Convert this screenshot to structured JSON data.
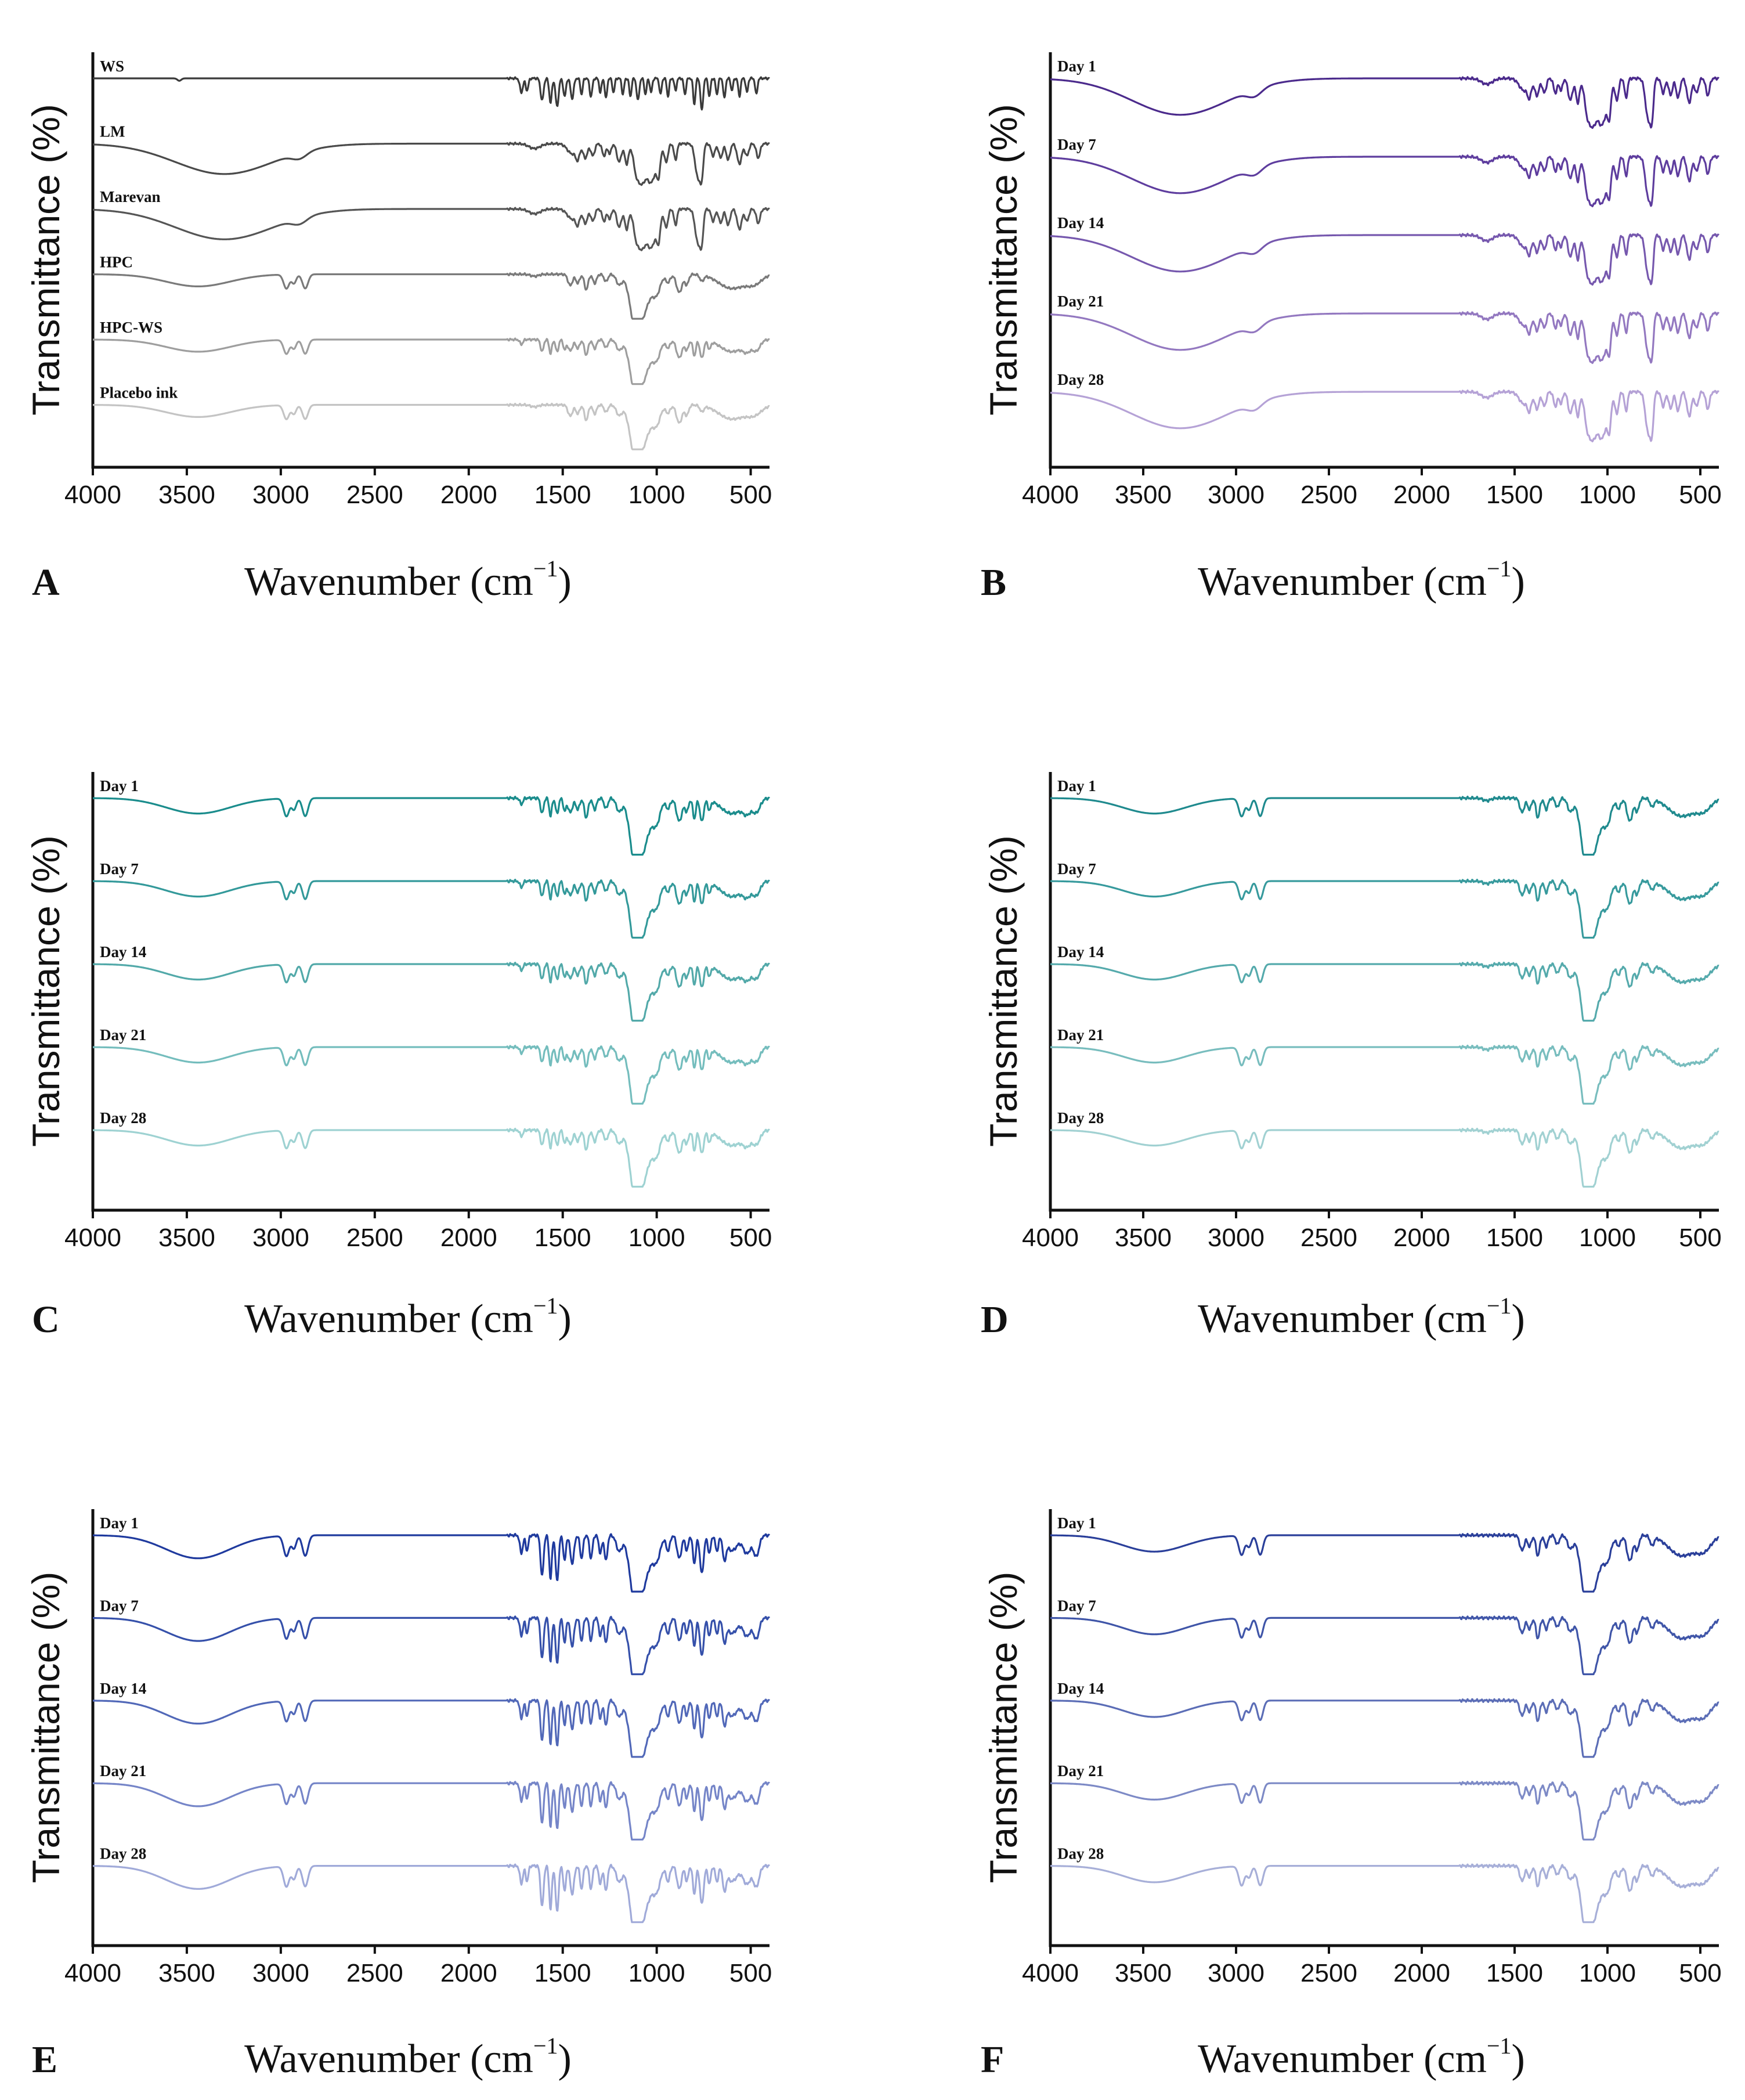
{
  "chart_data": [
    {
      "type": "line",
      "panel_label": "A",
      "ylabel": "Transmittance (%)",
      "xlabel": "Wavenumber (cm",
      "xlabel_superscript": "−1",
      "xlabel_suffix": ")",
      "xlim": [
        4000,
        400
      ],
      "xticks": [
        4000,
        3500,
        3000,
        2500,
        2000,
        1500,
        1000,
        500
      ],
      "series": [
        {
          "name": "WS",
          "color": "#3a3a3a",
          "profile": "WS"
        },
        {
          "name": "LM",
          "color": "#4a4a4a",
          "profile": "LM"
        },
        {
          "name": "Marevan",
          "color": "#555555",
          "profile": "LM"
        },
        {
          "name": "HPC",
          "color": "#7a7a7a",
          "profile": "HPC"
        },
        {
          "name": "HPC-WS",
          "color": "#9e9e9e",
          "profile": "HPCWS"
        },
        {
          "name": "Placebo ink",
          "color": "#c4c4c4",
          "profile": "HPC"
        }
      ]
    },
    {
      "type": "line",
      "panel_label": "B",
      "ylabel": "Transmittance (%)",
      "xlabel": "Wavenumber (cm",
      "xlabel_superscript": "−1",
      "xlabel_suffix": ")",
      "xlim": [
        4000,
        400
      ],
      "xticks": [
        4000,
        3500,
        3000,
        2500,
        2000,
        1500,
        1000,
        500
      ],
      "series": [
        {
          "name": "Day 1",
          "color": "#4b2a8c",
          "profile": "LM"
        },
        {
          "name": "Day 7",
          "color": "#5e3d9e",
          "profile": "LM"
        },
        {
          "name": "Day 14",
          "color": "#7658ae",
          "profile": "LM"
        },
        {
          "name": "Day 21",
          "color": "#9378c0",
          "profile": "LM"
        },
        {
          "name": "Day 28",
          "color": "#b5a2d6",
          "profile": "LM"
        }
      ]
    },
    {
      "type": "line",
      "panel_label": "C",
      "ylabel": "Transmittance (%)",
      "xlabel": "Wavenumber (cm",
      "xlabel_superscript": "−1",
      "xlabel_suffix": ")",
      "xlim": [
        4000,
        400
      ],
      "xticks": [
        4000,
        3500,
        3000,
        2500,
        2000,
        1500,
        1000,
        500
      ],
      "series": [
        {
          "name": "Day 1",
          "color": "#1a8c8c",
          "profile": "HPCWS"
        },
        {
          "name": "Day 7",
          "color": "#33999a",
          "profile": "HPCWS"
        },
        {
          "name": "Day 14",
          "color": "#52a9a9",
          "profile": "HPCWS"
        },
        {
          "name": "Day 21",
          "color": "#74bdbd",
          "profile": "HPCWS"
        },
        {
          "name": "Day 28",
          "color": "#9ed2d2",
          "profile": "HPCWS"
        }
      ]
    },
    {
      "type": "line",
      "panel_label": "D",
      "ylabel": "Transmittance (%)",
      "xlabel": "Wavenumber (cm",
      "xlabel_superscript": "−1",
      "xlabel_suffix": ")",
      "xlim": [
        4000,
        400
      ],
      "xticks": [
        4000,
        3500,
        3000,
        2500,
        2000,
        1500,
        1000,
        500
      ],
      "series": [
        {
          "name": "Day 1",
          "color": "#1f8a8e",
          "profile": "HPC"
        },
        {
          "name": "Day 7",
          "color": "#379a9d",
          "profile": "HPC"
        },
        {
          "name": "Day 14",
          "color": "#55aaac",
          "profile": "HPC"
        },
        {
          "name": "Day 21",
          "color": "#78bdbe",
          "profile": "HPC"
        },
        {
          "name": "Day 28",
          "color": "#a1d1d2",
          "profile": "HPC"
        }
      ]
    },
    {
      "type": "line",
      "panel_label": "E",
      "ylabel": "Transmittance (%)",
      "xlabel": "Wavenumber (cm",
      "xlabel_superscript": "−1",
      "xlabel_suffix": ")",
      "xlim": [
        4000,
        400
      ],
      "xticks": [
        4000,
        3500,
        3000,
        2500,
        2000,
        1500,
        1000,
        500
      ],
      "series": [
        {
          "name": "Day 1",
          "color": "#1f3a9e",
          "profile": "E"
        },
        {
          "name": "Day 7",
          "color": "#3550aa",
          "profile": "E"
        },
        {
          "name": "Day 14",
          "color": "#5168b8",
          "profile": "E"
        },
        {
          "name": "Day 21",
          "color": "#7585c8",
          "profile": "E"
        },
        {
          "name": "Day 28",
          "color": "#a0aad9",
          "profile": "E"
        }
      ]
    },
    {
      "type": "line",
      "panel_label": "F",
      "ylabel": "Transmittance (%)",
      "xlabel": "Wavenumber (cm",
      "xlabel_superscript": "−1",
      "xlabel_suffix": ")",
      "xlim": [
        4000,
        400
      ],
      "xticks": [
        4000,
        3500,
        3000,
        2500,
        2000,
        1500,
        1000,
        500
      ],
      "series": [
        {
          "name": "Day 1",
          "color": "#2a3f9a",
          "profile": "F"
        },
        {
          "name": "Day 7",
          "color": "#3f55a8",
          "profile": "F"
        },
        {
          "name": "Day 14",
          "color": "#5b6db6",
          "profile": "F"
        },
        {
          "name": "Day 21",
          "color": "#7d8ac6",
          "profile": "F"
        },
        {
          "name": "Day 28",
          "color": "#a7afd8",
          "profile": "F"
        }
      ]
    }
  ]
}
